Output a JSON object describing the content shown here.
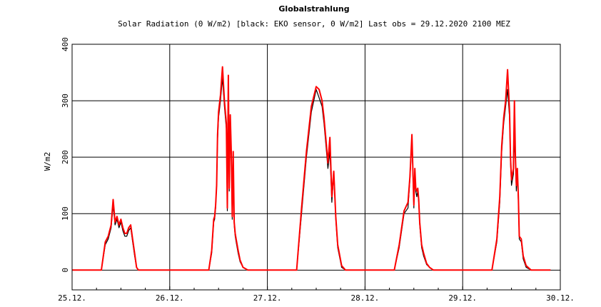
{
  "chart_data": {
    "type": "line",
    "title": "Globalstrahlung",
    "subtitle": "Solar Radiation (0 W/m2) [black: EKO sensor, 0 W/m2]    Last obs = 29.12.2020 2100 MEZ",
    "xlabel": "",
    "ylabel": "W/m2",
    "xlim": [
      0,
      5
    ],
    "ylim": [
      -35,
      400
    ],
    "grid": true,
    "x_tick_labels": [
      "25.12.",
      "26.12.",
      "27.12.",
      "28.12.",
      "29.12.",
      "30.12."
    ],
    "y_ticks": [
      0,
      100,
      200,
      300,
      400
    ],
    "y_tick_labels": [
      "0",
      "100",
      "200",
      "300",
      "400"
    ],
    "series": [
      {
        "color": "#000000",
        "x": [
          0,
          0.3,
          0.34,
          0.37,
          0.4,
          0.42,
          0.44,
          0.46,
          0.48,
          0.5,
          0.52,
          0.54,
          0.56,
          0.58,
          0.6,
          0.62,
          0.64,
          0.66,
          0.68,
          0.7,
          0.75,
          1.4,
          1.43,
          1.45,
          1.46,
          1.47,
          1.48,
          1.49,
          1.5,
          1.52,
          1.54,
          1.56,
          1.58,
          1.59,
          1.6,
          1.61,
          1.62,
          1.63,
          1.64,
          1.65,
          1.66,
          1.67,
          1.68,
          1.7,
          1.72,
          1.75,
          1.8,
          2.3,
          2.35,
          2.4,
          2.45,
          2.5,
          2.53,
          2.56,
          2.58,
          2.6,
          2.62,
          2.64,
          2.66,
          2.68,
          2.7,
          2.72,
          2.76,
          2.8,
          3.3,
          3.35,
          3.4,
          3.44,
          3.46,
          3.48,
          3.5,
          3.51,
          3.52,
          3.53,
          3.54,
          3.55,
          3.56,
          3.58,
          3.6,
          3.63,
          3.66,
          3.7,
          3.75,
          4.3,
          4.35,
          4.38,
          4.4,
          4.42,
          4.44,
          4.46,
          4.48,
          4.49,
          4.5,
          4.52,
          4.53,
          4.54,
          4.55,
          4.56,
          4.57,
          4.58,
          4.6,
          4.62,
          4.65,
          4.7,
          4.75,
          4.9
        ],
        "y": [
          0,
          0,
          45,
          55,
          75,
          115,
          80,
          90,
          75,
          85,
          70,
          60,
          60,
          70,
          75,
          50,
          25,
          5,
          0,
          0,
          0,
          0,
          30,
          85,
          90,
          110,
          150,
          230,
          270,
          300,
          340,
          290,
          250,
          105,
          310,
          140,
          260,
          200,
          90,
          200,
          80,
          60,
          50,
          30,
          15,
          5,
          0,
          0,
          100,
          200,
          280,
          320,
          305,
          290,
          260,
          220,
          180,
          210,
          120,
          170,
          90,
          40,
          5,
          0,
          0,
          40,
          100,
          110,
          160,
          230,
          110,
          170,
          140,
          130,
          140,
          120,
          80,
          40,
          25,
          10,
          5,
          0,
          0,
          0,
          50,
          120,
          210,
          260,
          290,
          320,
          270,
          190,
          150,
          170,
          230,
          195,
          140,
          175,
          120,
          55,
          50,
          20,
          5,
          0,
          0,
          0
        ]
      },
      {
        "color": "#ff0000",
        "x": [
          0,
          0.3,
          0.34,
          0.37,
          0.4,
          0.42,
          0.44,
          0.46,
          0.48,
          0.5,
          0.52,
          0.54,
          0.56,
          0.58,
          0.6,
          0.62,
          0.64,
          0.66,
          0.68,
          0.7,
          0.75,
          1.4,
          1.43,
          1.45,
          1.46,
          1.47,
          1.48,
          1.49,
          1.5,
          1.52,
          1.54,
          1.56,
          1.58,
          1.59,
          1.6,
          1.61,
          1.62,
          1.63,
          1.64,
          1.65,
          1.66,
          1.67,
          1.68,
          1.7,
          1.72,
          1.75,
          1.8,
          2.3,
          2.35,
          2.4,
          2.45,
          2.5,
          2.53,
          2.56,
          2.58,
          2.6,
          2.62,
          2.64,
          2.66,
          2.68,
          2.7,
          2.72,
          2.76,
          2.8,
          3.3,
          3.35,
          3.4,
          3.44,
          3.46,
          3.48,
          3.5,
          3.51,
          3.52,
          3.53,
          3.54,
          3.55,
          3.56,
          3.58,
          3.6,
          3.63,
          3.66,
          3.7,
          3.75,
          4.3,
          4.35,
          4.38,
          4.4,
          4.42,
          4.44,
          4.46,
          4.48,
          4.49,
          4.5,
          4.52,
          4.53,
          4.54,
          4.55,
          4.56,
          4.57,
          4.58,
          4.6,
          4.62,
          4.65,
          4.7,
          4.75,
          4.9
        ],
        "y": [
          0,
          0,
          50,
          60,
          80,
          125,
          85,
          95,
          80,
          90,
          75,
          65,
          65,
          75,
          80,
          55,
          30,
          5,
          0,
          0,
          0,
          0,
          35,
          90,
          95,
          115,
          150,
          240,
          280,
          310,
          360,
          300,
          260,
          110,
          345,
          145,
          275,
          210,
          95,
          210,
          85,
          65,
          55,
          35,
          18,
          5,
          0,
          0,
          110,
          210,
          290,
          325,
          320,
          300,
          270,
          230,
          190,
          235,
          130,
          175,
          95,
          45,
          8,
          0,
          0,
          45,
          105,
          120,
          165,
          240,
          115,
          180,
          145,
          140,
          145,
          125,
          85,
          45,
          30,
          12,
          5,
          0,
          0,
          0,
          55,
          130,
          220,
          270,
          300,
          355,
          280,
          200,
          160,
          180,
          300,
          200,
          150,
          180,
          130,
          60,
          55,
          25,
          8,
          0,
          0,
          0
        ]
      }
    ]
  }
}
